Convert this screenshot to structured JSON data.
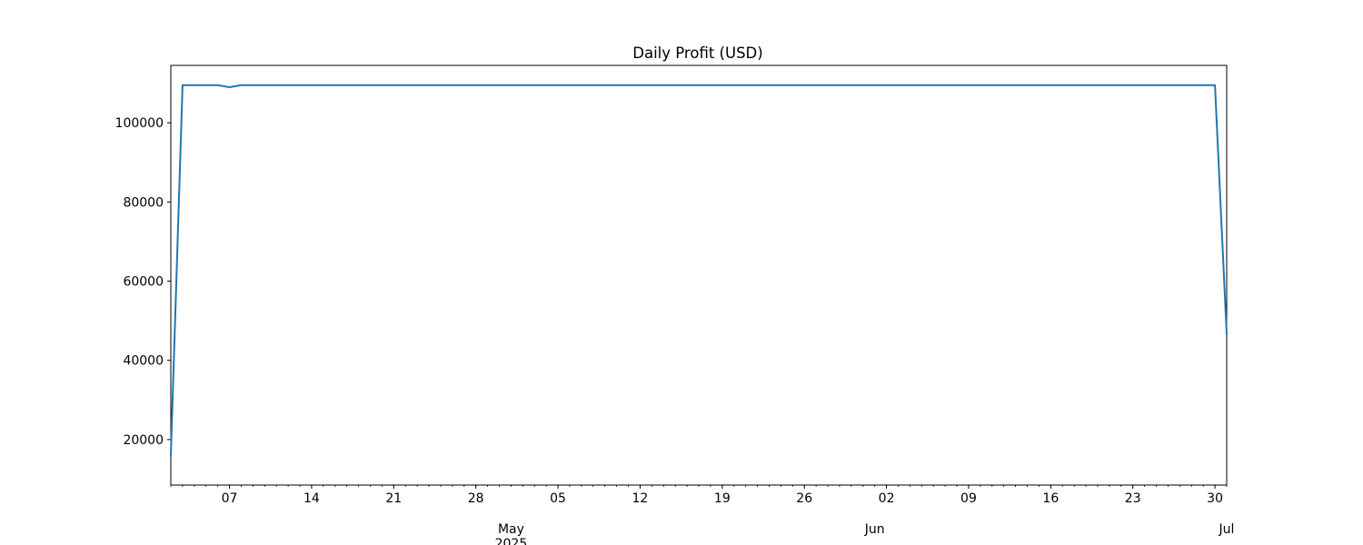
{
  "chart_data": {
    "type": "line",
    "title": "Daily Profit (USD)",
    "xlabel": "",
    "ylabel": "",
    "xlim": [
      "2025-04-02",
      "2025-07-01"
    ],
    "ylim": [
      8500,
      114500
    ],
    "grid": false,
    "legend": "none",
    "color": "#1f77b4",
    "yticks": [
      {
        "value": 20000,
        "label": "20000"
      },
      {
        "value": 40000,
        "label": "40000"
      },
      {
        "value": 60000,
        "label": "60000"
      },
      {
        "value": 80000,
        "label": "80000"
      },
      {
        "value": 100000,
        "label": "100000"
      }
    ],
    "xticks": [
      {
        "date": "2025-04-07",
        "label": "07"
      },
      {
        "date": "2025-04-14",
        "label": "14"
      },
      {
        "date": "2025-04-21",
        "label": "21"
      },
      {
        "date": "2025-04-28",
        "label": "28"
      },
      {
        "date": "2025-05-05",
        "label": "05"
      },
      {
        "date": "2025-05-12",
        "label": "12"
      },
      {
        "date": "2025-05-19",
        "label": "19"
      },
      {
        "date": "2025-05-26",
        "label": "26"
      },
      {
        "date": "2025-06-02",
        "label": "02"
      },
      {
        "date": "2025-06-09",
        "label": "09"
      },
      {
        "date": "2025-06-16",
        "label": "16"
      },
      {
        "date": "2025-06-23",
        "label": "23"
      },
      {
        "date": "2025-06-30",
        "label": "30"
      }
    ],
    "month_ticks": [
      {
        "date": "2025-05-01",
        "label": "May",
        "sublabel": "2025"
      },
      {
        "date": "2025-06-01",
        "label": "Jun",
        "sublabel": ""
      },
      {
        "date": "2025-07-01",
        "label": "Jul",
        "sublabel": ""
      }
    ],
    "series": [
      {
        "points": [
          {
            "x": "2025-04-02",
            "y": 16000
          },
          {
            "x": "2025-04-03",
            "y": 109500
          },
          {
            "x": "2025-04-06",
            "y": 109500
          },
          {
            "x": "2025-04-07",
            "y": 109000
          },
          {
            "x": "2025-04-08",
            "y": 109500
          },
          {
            "x": "2025-06-30",
            "y": 109500
          },
          {
            "x": "2025-07-01",
            "y": 46500
          }
        ]
      }
    ]
  }
}
